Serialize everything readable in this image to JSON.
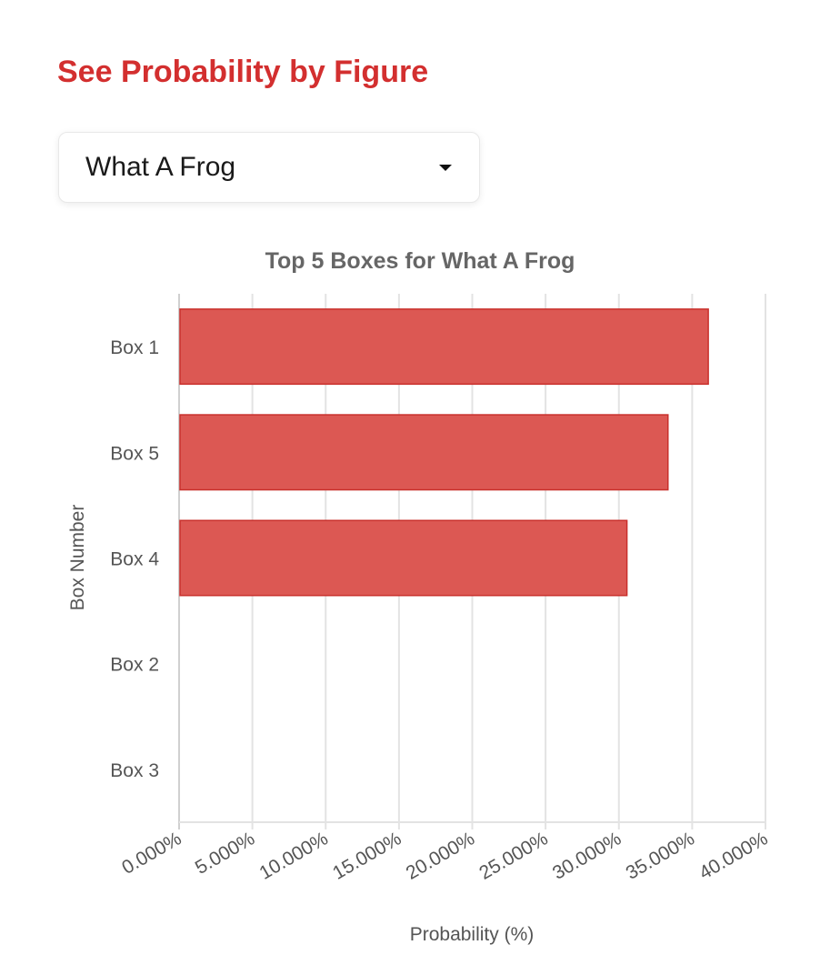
{
  "page": {
    "heading": "See Probability by Figure",
    "select": {
      "value": "What A Frog"
    }
  },
  "colors": {
    "heading": "#d32f2f",
    "bar_fill": "#dc5853",
    "bar_stroke": "#c9302c",
    "grid": "#e3e3e3",
    "axis_text": "#555555",
    "title_text": "#666666"
  },
  "chart_data": {
    "type": "bar",
    "orientation": "horizontal",
    "title": "Top 5 Boxes for What A Frog",
    "xlabel": "Probability (%)",
    "ylabel": "Box Number",
    "categories": [
      "Box 1",
      "Box 5",
      "Box 4",
      "Box 2",
      "Box 3"
    ],
    "values": [
      36.1,
      33.35,
      30.55,
      0,
      0
    ],
    "xlim": [
      0,
      40
    ],
    "xticks": [
      "0.000%",
      "5.000%",
      "10.000%",
      "15.000%",
      "20.000%",
      "25.000%",
      "30.000%",
      "35.000%",
      "40.000%"
    ],
    "grid": true,
    "legend": "none"
  }
}
